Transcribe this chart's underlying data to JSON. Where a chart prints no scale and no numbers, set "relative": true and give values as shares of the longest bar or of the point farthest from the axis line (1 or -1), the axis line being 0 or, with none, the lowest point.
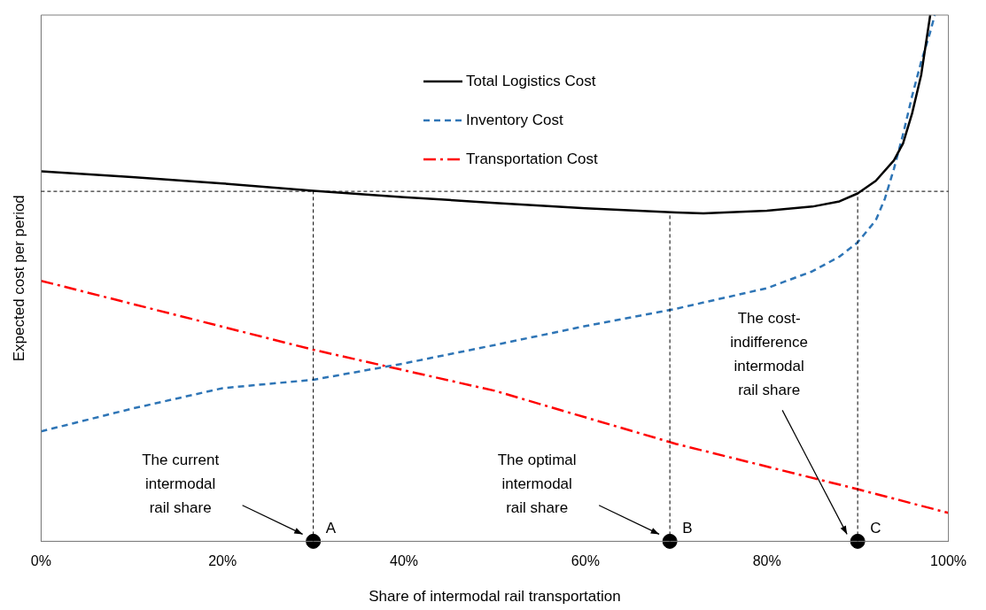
{
  "chart_data": {
    "type": "line",
    "relative": true,
    "xlabel": "Share of intermodal rail transportation",
    "ylabel": "Expected cost per period",
    "xlim": [
      0,
      100
    ],
    "xticks": [
      {
        "value": 0,
        "label": "0%"
      },
      {
        "value": 20,
        "label": "20%"
      },
      {
        "value": 40,
        "label": "40%"
      },
      {
        "value": 60,
        "label": "60%"
      },
      {
        "value": 80,
        "label": "80%"
      },
      {
        "value": 100,
        "label": "100%"
      }
    ],
    "grid": false,
    "legend": "top",
    "marker": "none",
    "series": [
      {
        "name": "Total Logistics Cost",
        "color": "#000000",
        "line_style": "solid",
        "x": [
          0,
          10,
          20,
          30,
          40,
          50,
          60,
          70,
          73,
          80,
          85,
          88,
          90,
          92,
          94,
          95,
          96,
          97,
          98
        ],
        "values": [
          0.703,
          0.692,
          0.68,
          0.666,
          0.654,
          0.643,
          0.633,
          0.625,
          0.623,
          0.628,
          0.636,
          0.646,
          0.661,
          0.685,
          0.724,
          0.756,
          0.813,
          0.886,
          1
        ]
      },
      {
        "name": "Inventory Cost",
        "color": "#2e75b6",
        "line_style": "dashed",
        "x": [
          0,
          10,
          20,
          30,
          40,
          50,
          60,
          70,
          80,
          85,
          88,
          90,
          92,
          93,
          94,
          95,
          96,
          97,
          98,
          98.5
        ],
        "values": [
          0.209,
          0.252,
          0.291,
          0.307,
          0.338,
          0.373,
          0.409,
          0.442,
          0.481,
          0.513,
          0.541,
          0.568,
          0.61,
          0.651,
          0.708,
          0.773,
          0.846,
          0.911,
          0.968,
          1
        ]
      },
      {
        "name": "Transportation Cost",
        "color": "#ff0000",
        "line_style": "dashdot",
        "x": [
          0,
          30,
          50,
          70,
          90,
          100
        ],
        "values": [
          0.495,
          0.364,
          0.286,
          0.185,
          0.099,
          0.054
        ]
      },
      {
        "type": "scatter",
        "marker": "circle",
        "color": "#000000",
        "x": [
          30,
          69.3,
          90
        ],
        "values": [
          0,
          0,
          0
        ]
      }
    ],
    "ref_lines": [
      {
        "axis": "y",
        "value": 0.665,
        "line_style": "dashed",
        "color": "#000000"
      },
      {
        "axis": "x",
        "value": 30,
        "line_style": "dashed",
        "color": "#000000"
      },
      {
        "axis": "x",
        "value": 69.3,
        "line_style": "dashed",
        "color": "#000000"
      },
      {
        "axis": "x",
        "value": 90,
        "line_style": "dashed",
        "color": "#000000"
      }
    ],
    "annotations": [
      {
        "text": "A",
        "x": 30,
        "y": 0
      },
      {
        "text": "B",
        "x": 69.3,
        "y": 0
      },
      {
        "text": "C",
        "x": 90,
        "y": 0
      },
      "The current\nintermodal\nrail share",
      "The optimal\nintermodal\nrail share",
      "The cost-\nindifference\nintermodal\nrail share"
    ]
  }
}
